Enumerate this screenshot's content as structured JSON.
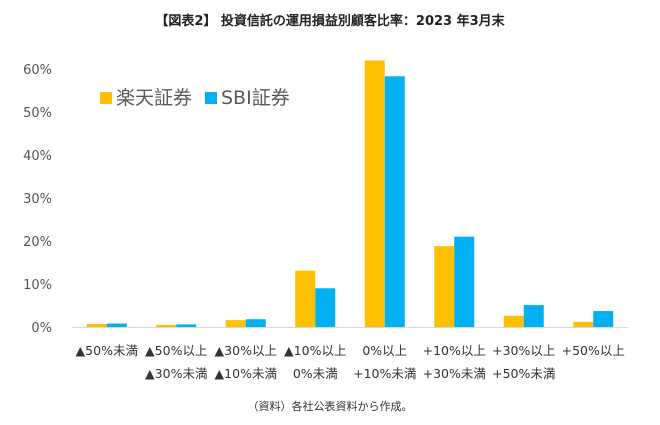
{
  "chart_data": {
    "type": "bar",
    "title": "【図表2】 投資信託の運用損益別顧客比率：2023 年3月末",
    "source": "（資料）各社公表資料から作成。",
    "categories": [
      [
        "▲50%未満"
      ],
      [
        "▲50%以上",
        "▲30%未満"
      ],
      [
        "▲30%以上",
        "▲10%未満"
      ],
      [
        "▲10%以上",
        "0%未満"
      ],
      [
        "0%以上",
        "+10%未満"
      ],
      [
        "+10%以上",
        "+30%未満"
      ],
      [
        "+30%以上",
        "+50%未満"
      ],
      [
        "+50%以上"
      ]
    ],
    "series": [
      {
        "name": "楽天証券",
        "color": "#FFC000",
        "values": [
          0.7,
          0.5,
          1.6,
          13.1,
          62.0,
          18.8,
          2.6,
          1.2
        ]
      },
      {
        "name": "SBI証券",
        "color": "#00B0F0",
        "values": [
          0.8,
          0.6,
          1.8,
          9.0,
          58.3,
          21.0,
          5.1,
          3.7
        ]
      }
    ],
    "y_ticks": [
      "0%",
      "10%",
      "20%",
      "30%",
      "40%",
      "50%",
      "60%"
    ],
    "ylim": [
      0,
      60
    ],
    "grid": false,
    "legend": "top-left"
  }
}
